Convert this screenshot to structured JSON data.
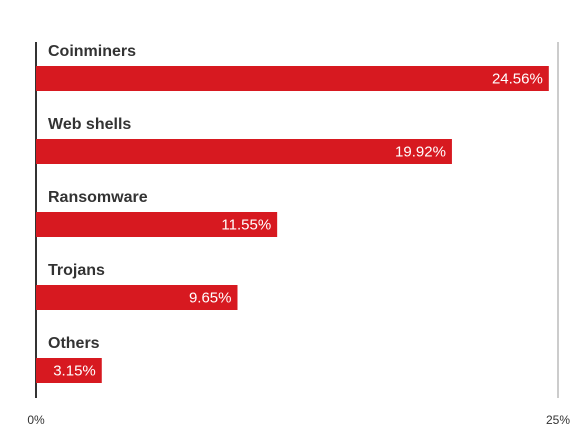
{
  "chart_data": {
    "type": "bar",
    "orientation": "horizontal",
    "categories": [
      "Coinminers",
      "Web shells",
      "Ransomware",
      "Trojans",
      "Others"
    ],
    "values": [
      24.56,
      19.92,
      11.55,
      9.65,
      3.15
    ],
    "value_labels": [
      "24.56%",
      "19.92%",
      "11.55%",
      "9.65%",
      "3.15%"
    ],
    "color": "#d71920",
    "xlim": [
      0,
      25
    ],
    "xticks": [
      {
        "value": 0,
        "label": "0%"
      },
      {
        "value": 25,
        "label": "25%"
      }
    ]
  }
}
